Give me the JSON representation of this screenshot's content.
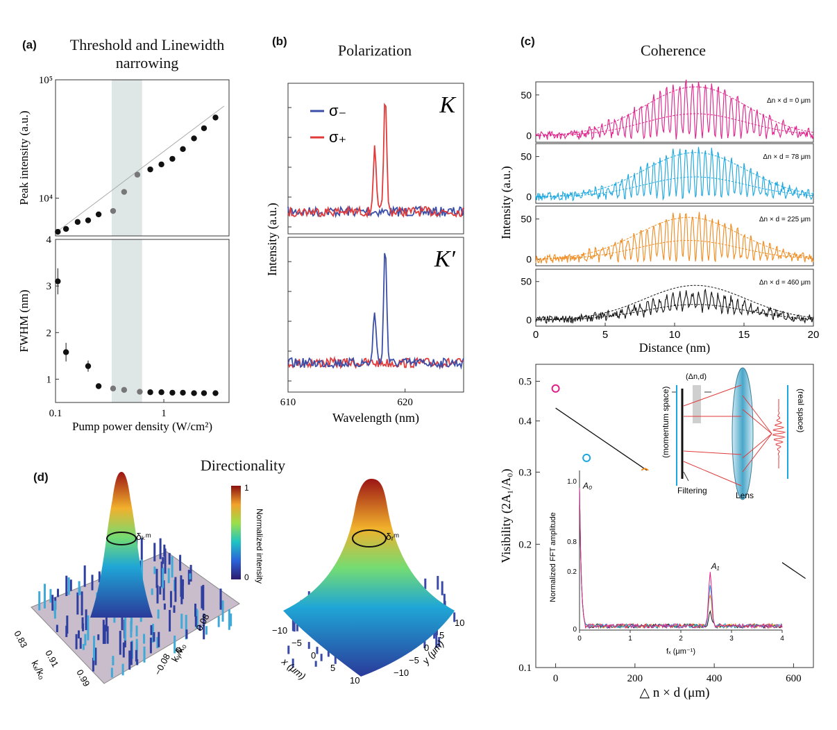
{
  "panels": {
    "a": {
      "label": "(a)",
      "title": "Threshold and Linewidth narrowing"
    },
    "b": {
      "label": "(b)",
      "title": "Polarization"
    },
    "c": {
      "label": "(c)",
      "title": "Coherence"
    },
    "d": {
      "label": "(d)",
      "title": "Directionality"
    }
  },
  "chart_data": [
    {
      "id": "a-top",
      "type": "scatter",
      "scale": "log-log",
      "xlim": [
        0.1,
        4
      ],
      "ylim": [
        4800,
        100000
      ],
      "ylabel": "Peak intensity (a.u.)",
      "yticks": [
        {
          "v": 10000,
          "label": "10⁴"
        },
        {
          "v": 100000,
          "label": "10⁵"
        }
      ],
      "x": [
        0.105,
        0.125,
        0.16,
        0.2,
        0.25,
        0.34,
        0.43,
        0.57,
        0.75,
        0.95,
        1.2,
        1.5,
        1.9,
        2.35,
        3.0
      ],
      "y": [
        5200,
        5500,
        6300,
        6500,
        7300,
        7800,
        11300,
        15800,
        17500,
        19300,
        21500,
        26000,
        32000,
        39000,
        48000
      ],
      "shaded_x": [
        0.33,
        0.63
      ],
      "fit_line": [
        [
          0.1,
          5100
        ],
        [
          3.6,
          60000
        ]
      ]
    },
    {
      "id": "a-bottom",
      "type": "scatter",
      "scale": "log-x",
      "xlim": [
        0.1,
        4
      ],
      "ylim": [
        0.5,
        4
      ],
      "xlabel": "Pump power density (W/cm²)",
      "ylabel": "FWHM (nm)",
      "yticks": [
        1,
        2,
        3,
        4
      ],
      "xticks": [
        {
          "v": 0.1,
          "label": "0.1"
        },
        {
          "v": 1,
          "label": "1"
        }
      ],
      "x": [
        0.105,
        0.125,
        0.2,
        0.25,
        0.34,
        0.43,
        0.6,
        0.75,
        0.95,
        1.2,
        1.5,
        1.9,
        2.35,
        3.0
      ],
      "y": [
        3.1,
        1.58,
        1.28,
        0.85,
        0.8,
        0.77,
        0.73,
        0.72,
        0.72,
        0.71,
        0.71,
        0.7,
        0.7,
        0.7
      ],
      "err": [
        0.28,
        0.2,
        0.12,
        0,
        0,
        0,
        0,
        0,
        0,
        0,
        0,
        0,
        0,
        0
      ],
      "shaded_x": [
        0.33,
        0.63
      ]
    },
    {
      "id": "b",
      "type": "line",
      "xlabel": "Wavelength (nm)",
      "ylabel": "Intensity (a.u.)",
      "xlim": [
        610,
        625
      ],
      "xticks": [
        610,
        620
      ],
      "subpanels": [
        {
          "name": "K",
          "peaks_sigma_minus": [],
          "peaks_sigma_plus": [
            [
              617.4,
              0.55
            ],
            [
              618.3,
              1.0
            ]
          ]
        },
        {
          "name": "K′",
          "peaks_sigma_minus": [
            [
              617.4,
              0.45
            ],
            [
              618.3,
              1.0
            ]
          ],
          "peaks_sigma_plus": []
        }
      ],
      "legend": [
        "σ₋",
        "σ₊"
      ],
      "series_colors": {
        "sigma_minus": "#3a4ea8",
        "sigma_plus": "#e03a3a"
      }
    },
    {
      "id": "c-top",
      "type": "line",
      "xlabel": "Distance (nm)",
      "ylabel": "Intensity (a.u.)",
      "xlim": [
        0,
        20
      ],
      "xticks": [
        0,
        5,
        10,
        15,
        20
      ],
      "yticks": [
        0,
        50
      ],
      "series": [
        {
          "name": "Δn × d = 0 μm",
          "color": "#e0208a",
          "envelope_peak": 60,
          "center": 11.5
        },
        {
          "name": "Δn × d = 78 μm",
          "color": "#1aa6e0",
          "envelope_peak": 55,
          "center": 11.5
        },
        {
          "name": "Δn × d = 225 μm",
          "color": "#f08a1e",
          "envelope_peak": 52,
          "center": 11
        },
        {
          "name": "Δn × d = 460 μm",
          "color": "#111111",
          "envelope_peak": 45,
          "center": 11.5
        }
      ]
    },
    {
      "id": "c-bottom",
      "type": "scatter",
      "scale": "log-y",
      "xlabel": "△ n × d (μm)",
      "ylabel": "Visibility (2A₁/A₀)",
      "xlim": [
        -50,
        650
      ],
      "ylim": [
        0.1,
        0.55
      ],
      "xticks": [
        0,
        200,
        400,
        600
      ],
      "yticks": [
        0.1,
        0.2,
        0.3,
        0.4,
        0.5
      ],
      "points": [
        {
          "x": 0,
          "y": 0.48,
          "color": "#e0208a"
        },
        {
          "x": 78,
          "y": 0.325,
          "color": "#1aa6e0"
        },
        {
          "x": 225,
          "y": 0.3,
          "color": "#f08a1e"
        },
        {
          "x": 460,
          "y": 0.2,
          "color": "#111111"
        }
      ],
      "fit_line": [
        [
          0,
          0.43
        ],
        [
          630,
          0.165
        ]
      ],
      "inset": {
        "xlabel": "fₓ (μm⁻¹)",
        "ylabel": "Normalized FFT amplitude",
        "xticks": [
          0,
          1,
          2,
          3,
          4
        ],
        "yticks": [
          "0",
          "0.2",
          "0.8",
          "1.0"
        ],
        "peak_labels": [
          "A₀",
          "A₁"
        ]
      },
      "schematic_labels": [
        "(Δn,d)",
        "(momentum space)",
        "(real space)",
        "Filtering",
        "Lens"
      ]
    },
    {
      "id": "d",
      "type": "surface",
      "colorbar": {
        "label": "Normalized intensity",
        "max": "1",
        "min": "0"
      },
      "left": {
        "xlabel": "kₓ/k₀",
        "ylabel": "kᵧ/k₀",
        "xticks": [
          "0.83",
          "0.91",
          "0.99"
        ],
        "yticks": [
          "0.08",
          "0",
          "−0.08"
        ],
        "annotation": "δₖᵐ"
      },
      "right": {
        "xlabel": "x (μm)",
        "ylabel": "y (μm)",
        "xticks": [
          "−10",
          "−5",
          "0",
          "5",
          "10"
        ],
        "yticks": [
          "10",
          "5",
          "0",
          "−5",
          "−10"
        ],
        "annotation": "δᵣᵐ"
      }
    }
  ]
}
